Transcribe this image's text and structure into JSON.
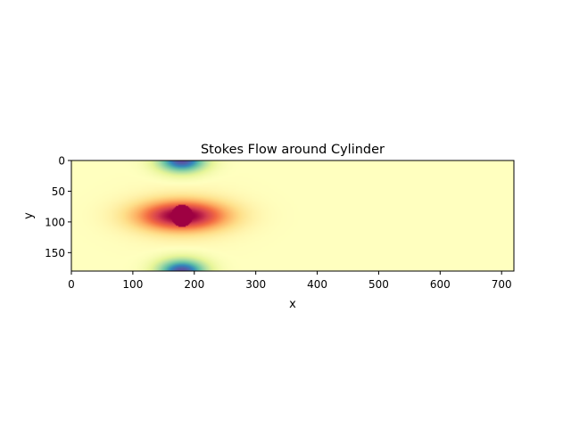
{
  "chart_data": {
    "type": "heatmap",
    "title": "Stokes Flow around Cylinder",
    "xlabel": "x",
    "ylabel": "y",
    "xlim": [
      0,
      720
    ],
    "ylim": [
      180,
      0
    ],
    "y_axis_inverted": true,
    "x_ticks": [
      0,
      100,
      200,
      300,
      400,
      500,
      600,
      700
    ],
    "y_ticks": [
      0,
      50,
      100,
      150
    ],
    "colormap": "Spectral",
    "grid": false,
    "legend": "none",
    "cylinder": {
      "center_x": 180,
      "center_y": 90,
      "radius": 18
    },
    "field_description_values": {
      "background_level": 0.5,
      "cylinder_level": 0.0,
      "wall_minimum_level": 1.0
    }
  },
  "colors": {
    "spectral_low": "#9e0142",
    "spectral_mid": "#ffffbf",
    "spectral_high": "#5e4fa2",
    "background_field": "#e6f598"
  }
}
